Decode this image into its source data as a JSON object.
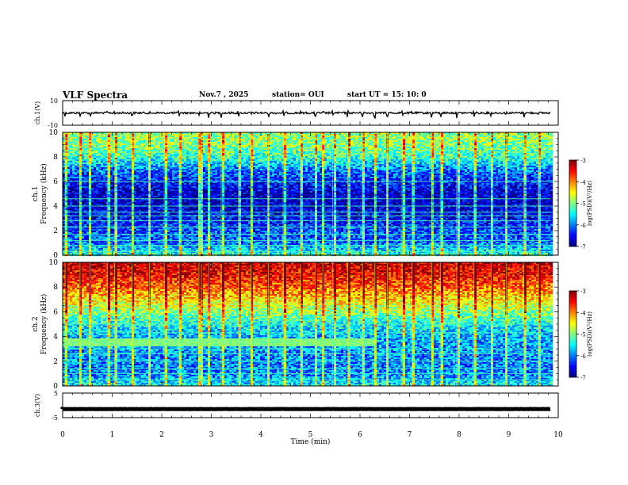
{
  "header": {
    "title": "VLF Spectra",
    "date": "Nov.7 , 2025",
    "station": "station= OUI",
    "start": "start UT = 15: 10: 0"
  },
  "chart_data": [
    {
      "type": "line",
      "name": "channel-1-waveform",
      "ylabel": "ch.1(V)",
      "ylim": [
        -10,
        10
      ],
      "yticks": [
        "10",
        "-10"
      ],
      "xlim": [
        0,
        10
      ],
      "baseline": 0
    },
    {
      "type": "heatmap",
      "name": "channel-1-spectrogram",
      "ylabel": "ch.1\nFrequency (kHz)",
      "ylabel_lines": [
        "ch.1",
        "Frequency (kHz)"
      ],
      "ylim": [
        0,
        10
      ],
      "yticks": [
        0,
        2,
        4,
        6,
        8,
        10
      ],
      "xlim": [
        0,
        10
      ],
      "colorbar": {
        "label": "log(PSD)(V²/Hz)",
        "range": [
          -7,
          -3
        ],
        "ticks": [
          "-3",
          "-4",
          "-5",
          "-6",
          "-7"
        ]
      },
      "profile": [
        {
          "f": 0,
          "v": -5.3
        },
        {
          "f": 1,
          "v": -6.1
        },
        {
          "f": 2,
          "v": -6.2
        },
        {
          "f": 3,
          "v": -6.5
        },
        {
          "f": 4,
          "v": -6.7
        },
        {
          "f": 5,
          "v": -6.7
        },
        {
          "f": 6,
          "v": -6.4
        },
        {
          "f": 7,
          "v": -6.0
        },
        {
          "f": 8,
          "v": -5.3
        },
        {
          "f": 9,
          "v": -5.0
        },
        {
          "f": 10,
          "v": -4.9
        }
      ],
      "tones_khz": [
        0.3,
        0.8,
        1.2,
        1.7,
        2.3,
        2.8,
        3.2,
        3.5,
        4.0,
        4.6,
        6.0
      ]
    },
    {
      "type": "heatmap",
      "name": "channel-2-spectrogram",
      "ylabel": "ch.2\nFrequency (kHz)",
      "ylabel_lines": [
        "ch.2",
        "Frequency (kHz)"
      ],
      "ylim": [
        0,
        10
      ],
      "yticks": [
        0,
        2,
        4,
        6,
        8,
        10
      ],
      "xlim": [
        0,
        10
      ],
      "colorbar": {
        "label": "log(PSD)(V²/Hz)",
        "range": [
          -7,
          -3
        ],
        "ticks": [
          "-3",
          "-4",
          "-5",
          "-6",
          "-7"
        ]
      },
      "profile": [
        {
          "f": 0,
          "v": -5.5
        },
        {
          "f": 1,
          "v": -6.0
        },
        {
          "f": 2,
          "v": -6.0
        },
        {
          "f": 3,
          "v": -5.9
        },
        {
          "f": 4,
          "v": -5.8
        },
        {
          "f": 5,
          "v": -5.5
        },
        {
          "f": 6,
          "v": -4.9
        },
        {
          "f": 7,
          "v": -4.4
        },
        {
          "f": 8,
          "v": -3.9
        },
        {
          "f": 9,
          "v": -3.5
        },
        {
          "f": 10,
          "v": -3.3
        }
      ],
      "tones_khz": [
        0.5,
        1.0,
        1.4,
        2.0,
        2.6,
        3.0,
        4.3,
        5.0
      ],
      "band": {
        "f_low": 3.2,
        "f_high": 3.8,
        "t_end": 6.25,
        "value": -5.0
      }
    },
    {
      "type": "line",
      "name": "channel-3-waveform",
      "ylabel": "ch.3(V)",
      "ylim": [
        -5,
        5
      ],
      "yticks": [
        "5",
        "-5"
      ],
      "xlim": [
        0,
        10
      ],
      "baseline": -1.5
    }
  ],
  "xaxis": {
    "label": "Time (min)",
    "ticks": [
      "0",
      "1",
      "2",
      "3",
      "4",
      "5",
      "6",
      "7",
      "8",
      "9",
      "10"
    ],
    "data_end_min": 9.85
  },
  "impulses_min": [
    0.05,
    0.35,
    0.55,
    0.9,
    1.05,
    1.4,
    1.75,
    2.05,
    2.35,
    2.75,
    2.8,
    2.95,
    3.2,
    3.55,
    3.8,
    4.15,
    4.45,
    4.8,
    5.1,
    5.25,
    5.45,
    5.75,
    6.05,
    6.3,
    6.55,
    6.85,
    7.05,
    7.45,
    7.62,
    7.95,
    8.3,
    8.65,
    8.95,
    9.3,
    9.6
  ]
}
